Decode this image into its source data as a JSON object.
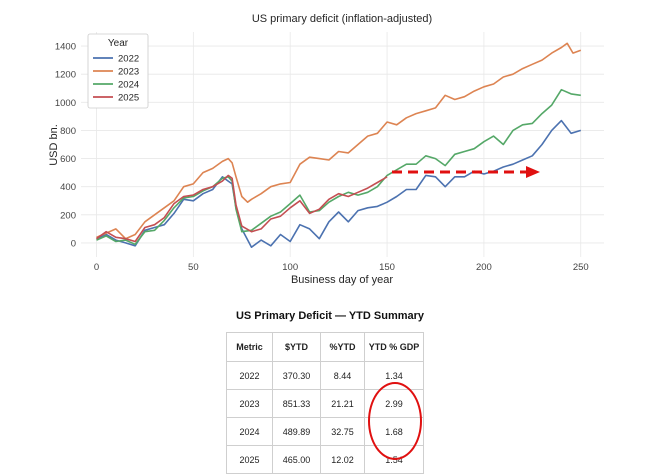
{
  "chart_data": {
    "type": "line",
    "title": "US primary deficit (inflation-adjusted)",
    "xlabel": "Business day of year",
    "ylabel": "USD bn.",
    "xlim": [
      -8,
      262
    ],
    "ylim": [
      -100,
      1500
    ],
    "xticks": [
      0,
      50,
      100,
      150,
      200,
      250
    ],
    "yticks": [
      0,
      200,
      400,
      600,
      800,
      1000,
      1200,
      1400
    ],
    "grid": true,
    "legend": {
      "title": "Year",
      "placement": "top-left"
    },
    "series": [
      {
        "name": "2022",
        "color": "#4c72b0",
        "x": [
          0,
          5,
          10,
          15,
          20,
          25,
          30,
          35,
          40,
          45,
          50,
          55,
          60,
          65,
          68,
          70,
          72,
          75,
          80,
          85,
          90,
          95,
          100,
          105,
          110,
          115,
          120,
          125,
          130,
          135,
          140,
          145,
          150,
          155,
          160,
          165,
          170,
          175,
          180,
          185,
          190,
          195,
          200,
          205,
          210,
          215,
          220,
          225,
          230,
          235,
          240,
          245,
          250
        ],
        "y": [
          30,
          60,
          20,
          0,
          -20,
          90,
          110,
          130,
          210,
          310,
          300,
          350,
          380,
          470,
          440,
          420,
          250,
          100,
          -30,
          20,
          -20,
          60,
          10,
          130,
          100,
          30,
          150,
          220,
          150,
          230,
          250,
          260,
          290,
          330,
          380,
          380,
          480,
          470,
          400,
          470,
          470,
          510,
          490,
          510,
          540,
          560,
          590,
          620,
          700,
          800,
          870,
          780,
          800
        ]
      },
      {
        "name": "2023",
        "color": "#dd8452",
        "x": [
          0,
          5,
          10,
          15,
          20,
          25,
          30,
          35,
          40,
          45,
          50,
          55,
          60,
          65,
          68,
          70,
          72,
          75,
          78,
          80,
          85,
          90,
          95,
          100,
          105,
          110,
          115,
          120,
          125,
          130,
          135,
          140,
          145,
          150,
          155,
          160,
          165,
          170,
          175,
          180,
          185,
          190,
          195,
          200,
          205,
          210,
          215,
          220,
          225,
          230,
          235,
          240,
          243,
          246,
          250
        ],
        "y": [
          40,
          70,
          100,
          30,
          60,
          150,
          200,
          250,
          300,
          400,
          420,
          500,
          530,
          580,
          600,
          570,
          470,
          330,
          290,
          310,
          350,
          400,
          420,
          430,
          560,
          610,
          600,
          590,
          650,
          640,
          700,
          760,
          780,
          860,
          840,
          890,
          920,
          940,
          960,
          1050,
          1020,
          1040,
          1080,
          1110,
          1130,
          1180,
          1200,
          1240,
          1270,
          1300,
          1350,
          1390,
          1420,
          1350,
          1370
        ]
      },
      {
        "name": "2024",
        "color": "#55a868",
        "x": [
          0,
          5,
          10,
          15,
          20,
          25,
          30,
          35,
          40,
          45,
          50,
          55,
          60,
          65,
          68,
          70,
          72,
          75,
          80,
          85,
          90,
          95,
          100,
          105,
          110,
          115,
          120,
          125,
          130,
          135,
          140,
          145,
          150,
          155,
          160,
          165,
          170,
          175,
          180,
          185,
          190,
          195,
          200,
          205,
          210,
          215,
          220,
          225,
          230,
          235,
          240,
          245,
          250
        ],
        "y": [
          20,
          50,
          10,
          20,
          -10,
          80,
          90,
          160,
          250,
          320,
          330,
          370,
          400,
          460,
          470,
          440,
          240,
          80,
          90,
          140,
          190,
          220,
          280,
          340,
          220,
          230,
          290,
          330,
          360,
          340,
          360,
          400,
          480,
          520,
          560,
          560,
          620,
          600,
          550,
          630,
          650,
          670,
          720,
          760,
          700,
          800,
          840,
          850,
          920,
          980,
          1090,
          1060,
          1050
        ]
      },
      {
        "name": "2025",
        "color": "#c44e52",
        "x": [
          0,
          5,
          10,
          15,
          20,
          25,
          30,
          35,
          40,
          45,
          50,
          55,
          60,
          65,
          68,
          70,
          72,
          75,
          80,
          85,
          90,
          95,
          100,
          105,
          110,
          115,
          120,
          125,
          130,
          135,
          140,
          145,
          150
        ],
        "y": [
          30,
          80,
          40,
          30,
          10,
          110,
          130,
          180,
          280,
          330,
          340,
          380,
          400,
          440,
          480,
          460,
          270,
          120,
          80,
          100,
          170,
          190,
          250,
          300,
          210,
          240,
          310,
          350,
          330,
          360,
          390,
          430,
          470
        ]
      }
    ]
  }
}
